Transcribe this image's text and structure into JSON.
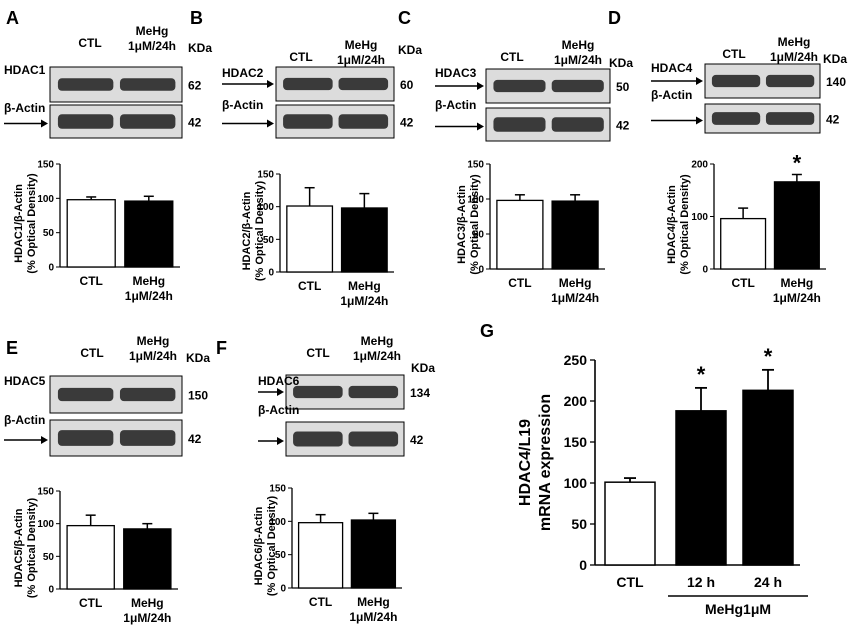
{
  "colors": {
    "control": "#ffffff",
    "treated": "#000000",
    "stroke": "#000000",
    "blot_bg": "#dcdcdc",
    "band": "#3a3a3a"
  },
  "blot_header": {
    "ctl": "CTL",
    "treat_line1": "MeHg",
    "treat_line2": "1μM/24h",
    "kda": "KDa"
  },
  "actin_label": "β-Actin",
  "actin_kda": "42",
  "panels": [
    {
      "id": "A",
      "protein": "HDAC1",
      "kda": "62",
      "ylabel_1": "HDAC1/β-Actin",
      "ylabel_2": "(% Optical Density)",
      "yticks": [
        "0",
        "50",
        "100",
        "150"
      ]
    },
    {
      "id": "B",
      "protein": "HDAC2",
      "kda": "60",
      "ylabel_1": "HDAC2/β-Actin",
      "ylabel_2": "(% Optical Density)",
      "yticks": [
        "0",
        "50",
        "100",
        "150"
      ]
    },
    {
      "id": "C",
      "protein": "HDAC3",
      "kda": "50",
      "ylabel_1": "HDAC3/β-Actin",
      "ylabel_2": "(% Optical Density)",
      "yticks": [
        "0",
        "50",
        "100",
        "150"
      ]
    },
    {
      "id": "D",
      "protein": "HDAC4",
      "kda": "140",
      "ylabel_1": "HDAC4/β-Actin",
      "ylabel_2": "(% Optical Density)",
      "yticks": [
        "0",
        "100",
        "200"
      ]
    },
    {
      "id": "E",
      "protein": "HDAC5",
      "kda": "150",
      "ylabel_1": "HDAC5/β-Actin",
      "ylabel_2": "(% Optical Density)",
      "yticks": [
        "0",
        "50",
        "100",
        "150"
      ]
    },
    {
      "id": "F",
      "protein": "HDAC6",
      "kda": "134",
      "ylabel_1": "HDAC6/β-Actin",
      "ylabel_2": "(% Optical Density)",
      "yticks": [
        "0",
        "50",
        "100",
        "150"
      ]
    }
  ],
  "panel_g": {
    "id": "G",
    "ylabel_1": "HDAC4/L19",
    "ylabel_2": "mRNA expression",
    "yticks": [
      "0",
      "50",
      "100",
      "150",
      "200",
      "250"
    ],
    "group_label": "MeHg1μM"
  },
  "chart_data": [
    {
      "panel": "A",
      "type": "bar",
      "categories": [
        "CTL",
        "MeHg 1μM/24h"
      ],
      "values": [
        98,
        96
      ],
      "errors": [
        4,
        7
      ],
      "ylim": [
        0,
        150
      ],
      "significant": [
        false,
        false
      ]
    },
    {
      "panel": "B",
      "type": "bar",
      "categories": [
        "CTL",
        "MeHg 1μM/24h"
      ],
      "values": [
        101,
        98
      ],
      "errors": [
        28,
        22
      ],
      "ylim": [
        0,
        150
      ],
      "significant": [
        false,
        false
      ]
    },
    {
      "panel": "C",
      "type": "bar",
      "categories": [
        "CTL",
        "MeHg 1μM/24h"
      ],
      "values": [
        98,
        97
      ],
      "errors": [
        8,
        9
      ],
      "ylim": [
        0,
        150
      ],
      "significant": [
        false,
        false
      ]
    },
    {
      "panel": "D",
      "type": "bar",
      "categories": [
        "CTL",
        "MeHg 1μM/24h"
      ],
      "values": [
        96,
        166
      ],
      "errors": [
        20,
        14
      ],
      "ylim": [
        0,
        200
      ],
      "significant": [
        false,
        true
      ]
    },
    {
      "panel": "E",
      "type": "bar",
      "categories": [
        "CTL",
        "MeHg 1μM/24h"
      ],
      "values": [
        97,
        92
      ],
      "errors": [
        16,
        8
      ],
      "ylim": [
        0,
        150
      ],
      "significant": [
        false,
        false
      ]
    },
    {
      "panel": "F",
      "type": "bar",
      "categories": [
        "CTL",
        "MeHg 1μM/24h"
      ],
      "values": [
        98,
        102
      ],
      "errors": [
        12,
        10
      ],
      "ylim": [
        0,
        150
      ],
      "significant": [
        false,
        false
      ]
    },
    {
      "panel": "G",
      "type": "bar",
      "categories": [
        "CTL",
        "12 h",
        "24 h"
      ],
      "values": [
        101,
        188,
        213
      ],
      "errors": [
        5,
        28,
        25
      ],
      "ylim": [
        0,
        250
      ],
      "significant": [
        false,
        true,
        true
      ]
    }
  ]
}
